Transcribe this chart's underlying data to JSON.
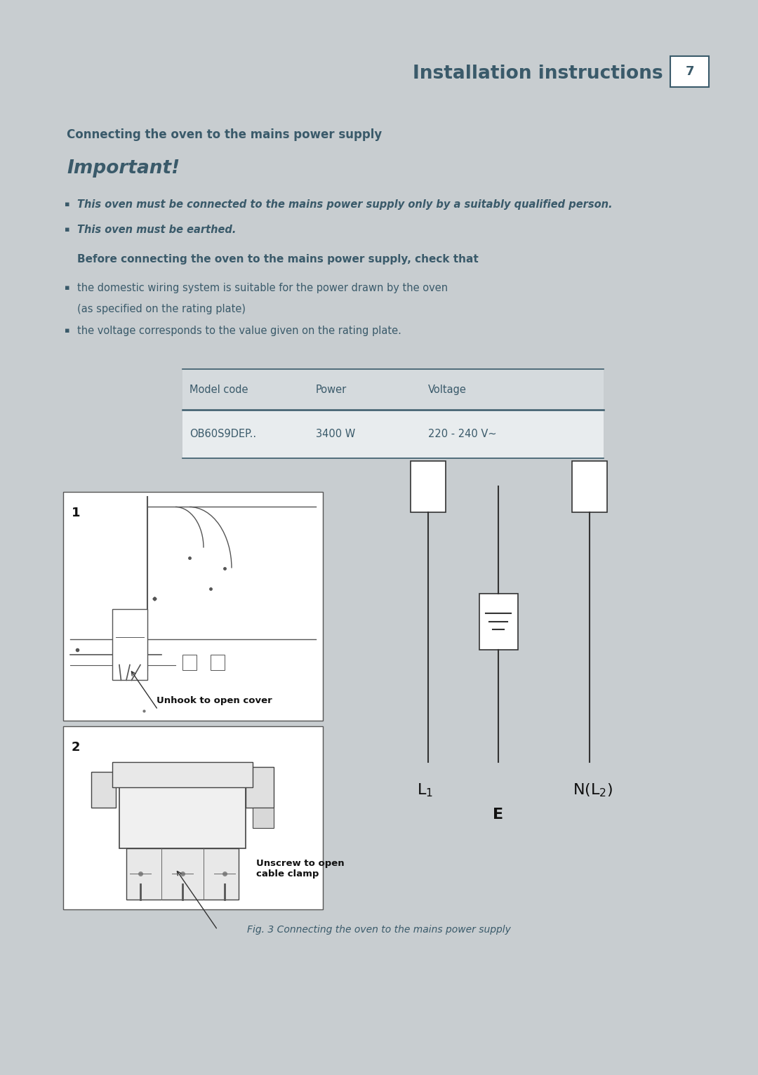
{
  "page_bg": "#c8cdd0",
  "content_bg": "#ffffff",
  "title_text": "Installation instructions",
  "page_number": "7",
  "title_color": "#4a7080",
  "heading1": "Connecting the oven to the mains power supply",
  "important_title": "Important!",
  "text_color": "#3a5a6a",
  "bullet_italic1": "This oven must be connected to the mains power supply only by a suitably qualified person.",
  "bullet_italic2": "This oven must be earthed.",
  "heading2": "Before connecting the oven to the mains power supply, check that",
  "bullet3a": "the domestic wiring system is suitable for the power drawn by the oven",
  "bullet3b": "(as specified on the rating plate)",
  "bullet4": "the voltage corresponds to the value given on the rating plate.",
  "table_header_bg": "#d5dadd",
  "table_row_bg": "#e8ecee",
  "table_border": "#3a5a6a",
  "table_cols": [
    "Model code",
    "Power",
    "Voltage"
  ],
  "table_data": [
    [
      "OB60S9DEP..",
      "3400 W",
      "220 - 240 V~"
    ]
  ],
  "fig_caption": "Fig. 3 Connecting the oven to the mains power supply"
}
